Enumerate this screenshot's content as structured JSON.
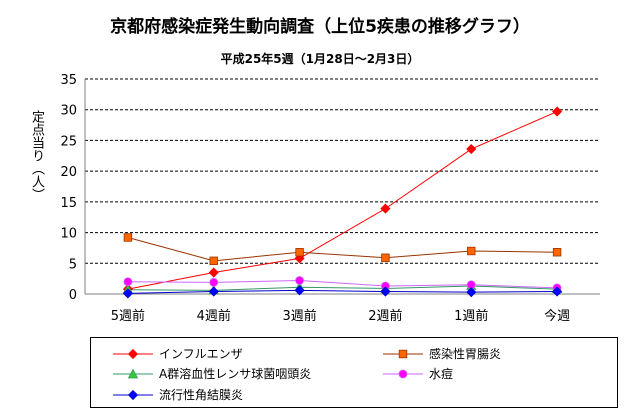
{
  "chart_data": {
    "type": "line",
    "title": "京都府感染症発生動向調査（上位5疾患の推移グラフ）",
    "subtitle": "平成25年5週（1月28日～2月3日）",
    "ylabel": "定点当り（人）",
    "xlabel": "",
    "categories": [
      "5週前",
      "4週前",
      "3週前",
      "2週前",
      "1週前",
      "今週"
    ],
    "ylim": [
      0,
      35
    ],
    "yticks": [
      0,
      5,
      10,
      15,
      20,
      25,
      30,
      35
    ],
    "grid": true,
    "legend_position": "bottom",
    "series": [
      {
        "name": "インフルエンザ",
        "values": [
          0.8,
          3.5,
          5.8,
          13.9,
          23.6,
          29.7
        ],
        "color": "#ff0000",
        "marker": "diamond"
      },
      {
        "name": "感染性胃腸炎",
        "values": [
          9.2,
          5.4,
          6.8,
          5.9,
          7.0,
          6.8
        ],
        "color": "#993300",
        "marker_fill": "#ff6600",
        "marker": "square"
      },
      {
        "name": "A群溶血性レンサ球菌咽頭炎",
        "values": [
          0.7,
          0.6,
          1.1,
          0.9,
          1.3,
          0.8
        ],
        "color": "#339966",
        "marker_fill": "#33cc33",
        "marker": "triangle"
      },
      {
        "name": "水痘",
        "values": [
          2.0,
          1.9,
          2.2,
          1.3,
          1.5,
          1.0
        ],
        "color": "#cc66ff",
        "marker_fill": "#ff00ff",
        "marker": "circle"
      },
      {
        "name": "流行性角結膜炎",
        "values": [
          0.1,
          0.4,
          0.6,
          0.4,
          0.3,
          0.4
        ],
        "color": "#0000cc",
        "marker_fill": "#0000ff",
        "marker": "diamond"
      }
    ]
  }
}
